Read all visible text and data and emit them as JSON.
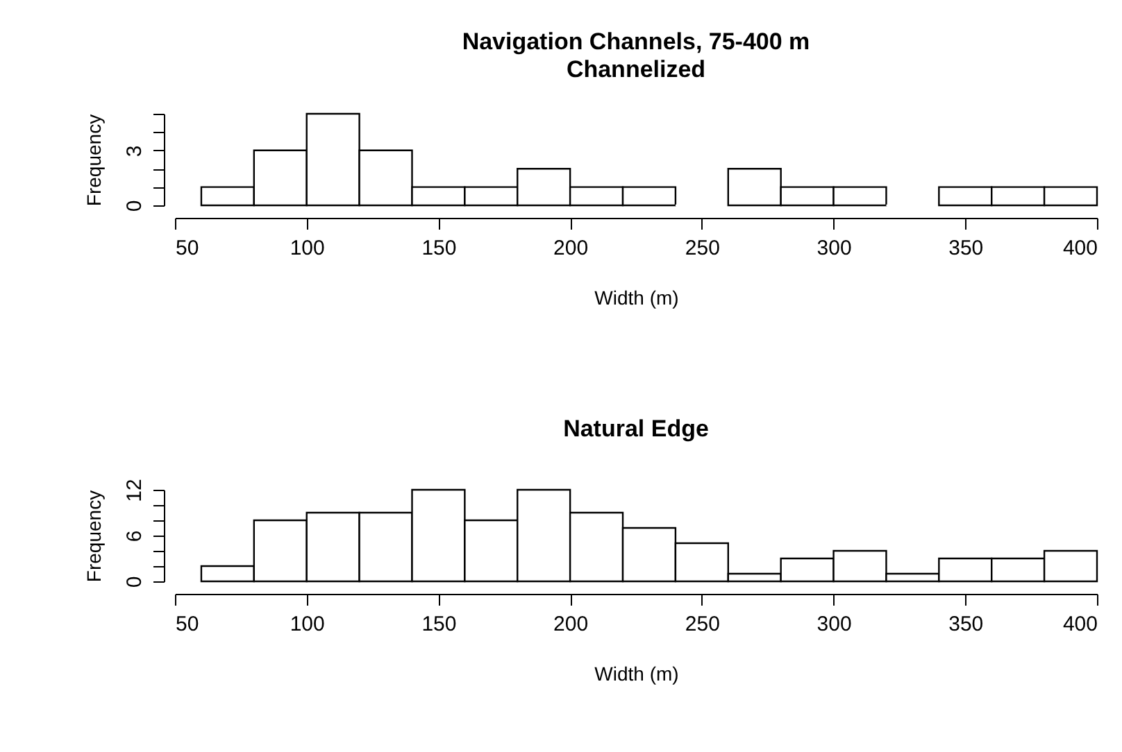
{
  "chart_data": [
    {
      "type": "histogram",
      "title": "Navigation Channels, 75-400 m",
      "subtitle": "Channelized",
      "xlabel": "Width (m)",
      "ylabel": "Frequency",
      "color": "#ffffff",
      "bins": [
        60,
        80,
        100,
        120,
        140,
        160,
        180,
        200,
        220,
        240,
        260,
        280,
        300,
        320,
        340,
        360,
        380,
        400
      ],
      "values": [
        1,
        3,
        5,
        3,
        1,
        1,
        2,
        1,
        1,
        0,
        2,
        1,
        1,
        0,
        1,
        1,
        1
      ],
      "xlim": [
        50,
        400
      ],
      "xticks": [
        50,
        100,
        150,
        200,
        250,
        300,
        350,
        400
      ],
      "ylim": [
        0,
        5
      ],
      "yticks": [
        0,
        {
          "value": 1,
          "label": null
        },
        {
          "value": 2,
          "label": null
        },
        3,
        {
          "value": 4,
          "label": null
        },
        {
          "value": 5,
          "label": null
        }
      ],
      "grid": false
    },
    {
      "type": "histogram",
      "title": "Natural Edge",
      "xlabel": "Width (m)",
      "ylabel": "Frequency",
      "color": "#ffffff",
      "bins": [
        60,
        80,
        100,
        120,
        140,
        160,
        180,
        200,
        220,
        240,
        260,
        280,
        300,
        320,
        340,
        360,
        380,
        400
      ],
      "values": [
        2,
        8,
        9,
        9,
        12,
        8,
        12,
        9,
        7,
        5,
        1,
        3,
        4,
        1,
        3,
        3,
        4
      ],
      "xlim": [
        50,
        400
      ],
      "xticks": [
        50,
        100,
        150,
        200,
        250,
        300,
        350,
        400
      ],
      "ylim": [
        0,
        12
      ],
      "yticks": [
        0,
        {
          "value": 2,
          "label": null
        },
        {
          "value": 4,
          "label": null
        },
        6,
        {
          "value": 8,
          "label": null
        },
        {
          "value": 10,
          "label": null
        },
        12
      ],
      "grid": false
    }
  ]
}
